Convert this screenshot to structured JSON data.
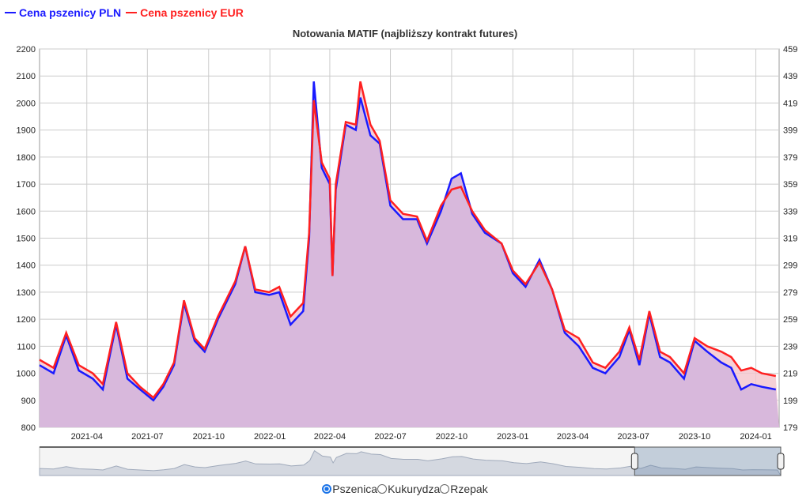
{
  "legend": {
    "pln_label": "Cena pszenicy PLN",
    "eur_label": "Cena pszenicy EUR"
  },
  "colors": {
    "pln": "#1a1aff",
    "eur": "#ff2020",
    "area": "#d8b8dc"
  },
  "radios": [
    {
      "label": "Pszenica",
      "selected": true
    },
    {
      "label": "Kukurydza",
      "selected": false
    },
    {
      "label": "Rzepak",
      "selected": false
    }
  ],
  "chart_data": {
    "type": "line",
    "title": "Notowania MATIF (najbliższy kontrakt futures)",
    "ylim_left": [
      800,
      2200
    ],
    "ylim_right": [
      179,
      459
    ],
    "left_ticks": [
      800,
      900,
      1000,
      1100,
      1200,
      1300,
      1400,
      1500,
      1600,
      1700,
      1800,
      1900,
      2000,
      2100,
      2200
    ],
    "right_ticks": [
      179,
      199,
      219,
      239,
      259,
      279,
      299,
      319,
      339,
      359,
      379,
      399,
      419,
      439,
      459
    ],
    "x_ticks": [
      "2021-04",
      "2021-07",
      "2021-10",
      "2022-01",
      "2022-04",
      "2022-07",
      "2022-10",
      "2023-01",
      "2023-04",
      "2023-07",
      "2023-10",
      "2024-01"
    ],
    "xlim": [
      "2021-01-20",
      "2024-02-05"
    ],
    "navigator_range": [
      "2023-07-01",
      "2024-02-05"
    ],
    "x": [
      "2021-01-20",
      "2021-02-10",
      "2021-03-01",
      "2021-03-20",
      "2021-04-10",
      "2021-04-25",
      "2021-05-15",
      "2021-06-01",
      "2021-06-20",
      "2021-07-10",
      "2021-07-25",
      "2021-08-10",
      "2021-08-25",
      "2021-09-10",
      "2021-09-25",
      "2021-10-15",
      "2021-11-10",
      "2021-11-25",
      "2021-12-10",
      "2021-12-31",
      "2022-01-15",
      "2022-02-01",
      "2022-02-20",
      "2022-03-01",
      "2022-03-08",
      "2022-03-20",
      "2022-04-01",
      "2022-04-05",
      "2022-04-10",
      "2022-04-25",
      "2022-05-10",
      "2022-05-17",
      "2022-06-01",
      "2022-06-15",
      "2022-07-01",
      "2022-07-20",
      "2022-08-10",
      "2022-08-25",
      "2022-09-15",
      "2022-10-01",
      "2022-10-15",
      "2022-11-01",
      "2022-11-20",
      "2022-12-15",
      "2023-01-01",
      "2023-01-20",
      "2023-02-10",
      "2023-03-01",
      "2023-03-20",
      "2023-04-10",
      "2023-05-01",
      "2023-05-20",
      "2023-06-10",
      "2023-06-25",
      "2023-07-10",
      "2023-07-25",
      "2023-08-10",
      "2023-08-25",
      "2023-09-15",
      "2023-10-01",
      "2023-10-20",
      "2023-11-10",
      "2023-11-25",
      "2023-12-10",
      "2023-12-25",
      "2024-01-10",
      "2024-01-31"
    ],
    "series": [
      {
        "name": "Cena pszenicy PLN",
        "axis": "left",
        "values": [
          1030,
          1000,
          1140,
          1010,
          980,
          940,
          1180,
          980,
          940,
          900,
          950,
          1030,
          1260,
          1120,
          1080,
          1200,
          1330,
          1470,
          1300,
          1290,
          1300,
          1180,
          1230,
          1500,
          2080,
          1760,
          1700,
          1360,
          1680,
          1920,
          1900,
          2020,
          1880,
          1850,
          1620,
          1570,
          1570,
          1480,
          1600,
          1720,
          1740,
          1590,
          1520,
          1480,
          1370,
          1320,
          1420,
          1310,
          1150,
          1100,
          1020,
          1000,
          1060,
          1160,
          1030,
          1220,
          1060,
          1040,
          980,
          1120,
          1080,
          1040,
          1020,
          940,
          960,
          950,
          940
        ]
      },
      {
        "name": "Cena pszenicy EUR",
        "axis": "right",
        "values": [
          229,
          223,
          249,
          225,
          219,
          211,
          257,
          219,
          209,
          201,
          211,
          227,
          273,
          245,
          237,
          261,
          287,
          313,
          281,
          279,
          283,
          261,
          271,
          323,
          421,
          375,
          363,
          291,
          359,
          405,
          403,
          435,
          403,
          391,
          347,
          337,
          335,
          317,
          343,
          355,
          357,
          339,
          325,
          315,
          295,
          285,
          301,
          281,
          251,
          245,
          227,
          223,
          235,
          253,
          229,
          265,
          235,
          231,
          219,
          245,
          239,
          235,
          231,
          221,
          223,
          219,
          217
        ]
      }
    ]
  }
}
